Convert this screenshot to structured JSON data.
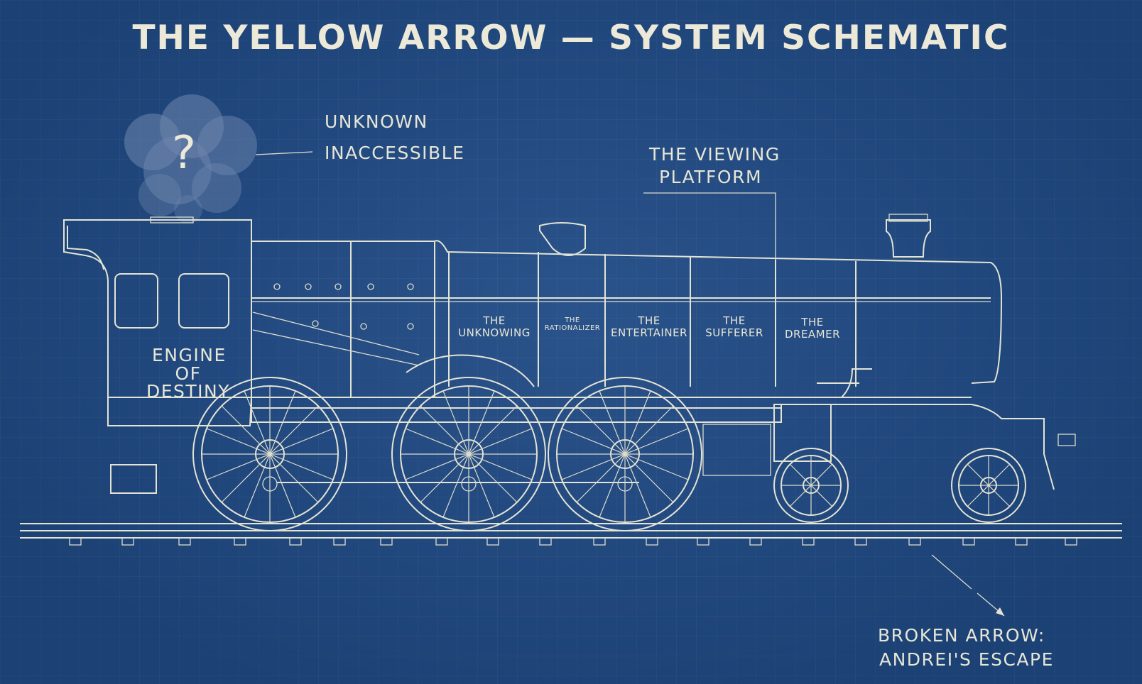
{
  "title": "THE YELLOW ARROW — SYSTEM SCHEMATIC",
  "smoke": {
    "symbol": "?",
    "label_line1": "UNKNOWN",
    "label_line2": "INACCESSIBLE"
  },
  "viewing_platform": {
    "line1": "THE VIEWING",
    "line2": "PLATFORM"
  },
  "engine": {
    "line1": "ENGINE",
    "line2": "OF",
    "line3": "DESTINY"
  },
  "cars": [
    {
      "line1": "THE",
      "line2": "UNKNOWING"
    },
    {
      "line1": "THE",
      "line2": "RATIONALIZER"
    },
    {
      "line1": "THE",
      "line2": "ENTERTAINER"
    },
    {
      "line1": "THE",
      "line2": "SUFFERER"
    },
    {
      "line1": "THE",
      "line2": "DREAMER"
    }
  ],
  "broken_arrow": {
    "line1": "BROKEN ARROW:",
    "line2": "ANDREI'S ESCAPE"
  },
  "colors": {
    "background": "#1f4a85",
    "line": "#e3e3d4"
  }
}
